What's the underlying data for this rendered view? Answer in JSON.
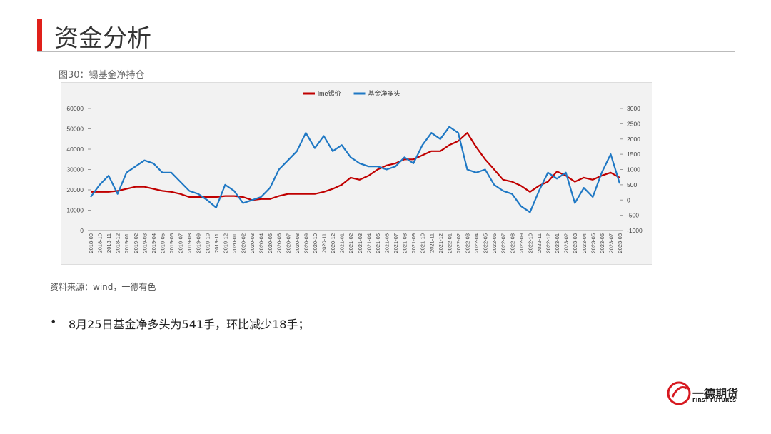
{
  "header": {
    "title": "资金分析"
  },
  "chart_data": {
    "type": "line",
    "title": "图30：锡基金净持仓",
    "categories": [
      "2018-09",
      "2018-10",
      "2018-11",
      "2018-12",
      "2019-01",
      "2019-02",
      "2019-03",
      "2019-04",
      "2019-05",
      "2019-06",
      "2019-07",
      "2019-08",
      "2019-09",
      "2019-10",
      "2019-11",
      "2019-12",
      "2020-01",
      "2020-02",
      "2020-03",
      "2020-04",
      "2020-05",
      "2020-06",
      "2020-07",
      "2020-08",
      "2020-09",
      "2020-10",
      "2020-11",
      "2020-12",
      "2021-01",
      "2021-02",
      "2021-03",
      "2021-04",
      "2021-05",
      "2021-06",
      "2021-07",
      "2021-08",
      "2021-09",
      "2021-10",
      "2021-11",
      "2021-12",
      "2022-01",
      "2022-02",
      "2022-03",
      "2022-04",
      "2022-05",
      "2022-06",
      "2022-07",
      "2022-08",
      "2022-09",
      "2022-10",
      "2022-11",
      "2022-12",
      "2023-01",
      "2023-02",
      "2023-03",
      "2023-04",
      "2023-05",
      "2023-06",
      "2023-07",
      "2023-08"
    ],
    "series": [
      {
        "name": "lme锡价",
        "color": "#c00000",
        "axis": "y",
        "values": [
          19000,
          19000,
          19000,
          19500,
          20500,
          21500,
          21500,
          20500,
          19500,
          19000,
          18000,
          16500,
          16500,
          16500,
          16500,
          17000,
          17000,
          16500,
          15000,
          15500,
          15500,
          17000,
          18000,
          18000,
          18000,
          18000,
          19000,
          20500,
          22500,
          26000,
          25000,
          27000,
          30000,
          32000,
          33000,
          35000,
          35000,
          37000,
          39000,
          39000,
          42000,
          44000,
          48000,
          41000,
          35000,
          30000,
          25000,
          24000,
          22000,
          19000,
          22000,
          24000,
          29000,
          27000,
          24000,
          26000,
          25000,
          27000,
          28500,
          26000
        ]
      },
      {
        "name": "基金净多头",
        "color": "#1f78c4",
        "axis": "y2",
        "values": [
          100,
          500,
          800,
          200,
          900,
          1100,
          1300,
          1200,
          900,
          900,
          600,
          300,
          200,
          0,
          -250,
          500,
          300,
          -100,
          0,
          100,
          400,
          1000,
          1300,
          1600,
          2200,
          1700,
          2100,
          1600,
          1800,
          1400,
          1200,
          1100,
          1100,
          1000,
          1100,
          1400,
          1200,
          1800,
          2200,
          2000,
          2400,
          2200,
          1000,
          900,
          1000,
          500,
          300,
          200,
          -200,
          -400,
          300,
          900,
          700,
          900,
          -100,
          400,
          100,
          900,
          1500,
          541
        ]
      }
    ],
    "ylim": [
      0,
      60000
    ],
    "yticks": [
      0,
      10000,
      20000,
      30000,
      40000,
      50000,
      60000
    ],
    "y2lim": [
      -1000,
      3000
    ],
    "y2ticks": [
      -1000,
      -500,
      0,
      500,
      1000,
      1500,
      2000,
      2500,
      3000
    ],
    "legend": "top",
    "grid": false
  },
  "source": "资料来源：wind，一德有色",
  "bullet": "8月25日基金净多头为541手，环比减少18手；",
  "logo": {
    "name": "一德期货",
    "english": "FIRST FUTURES"
  }
}
